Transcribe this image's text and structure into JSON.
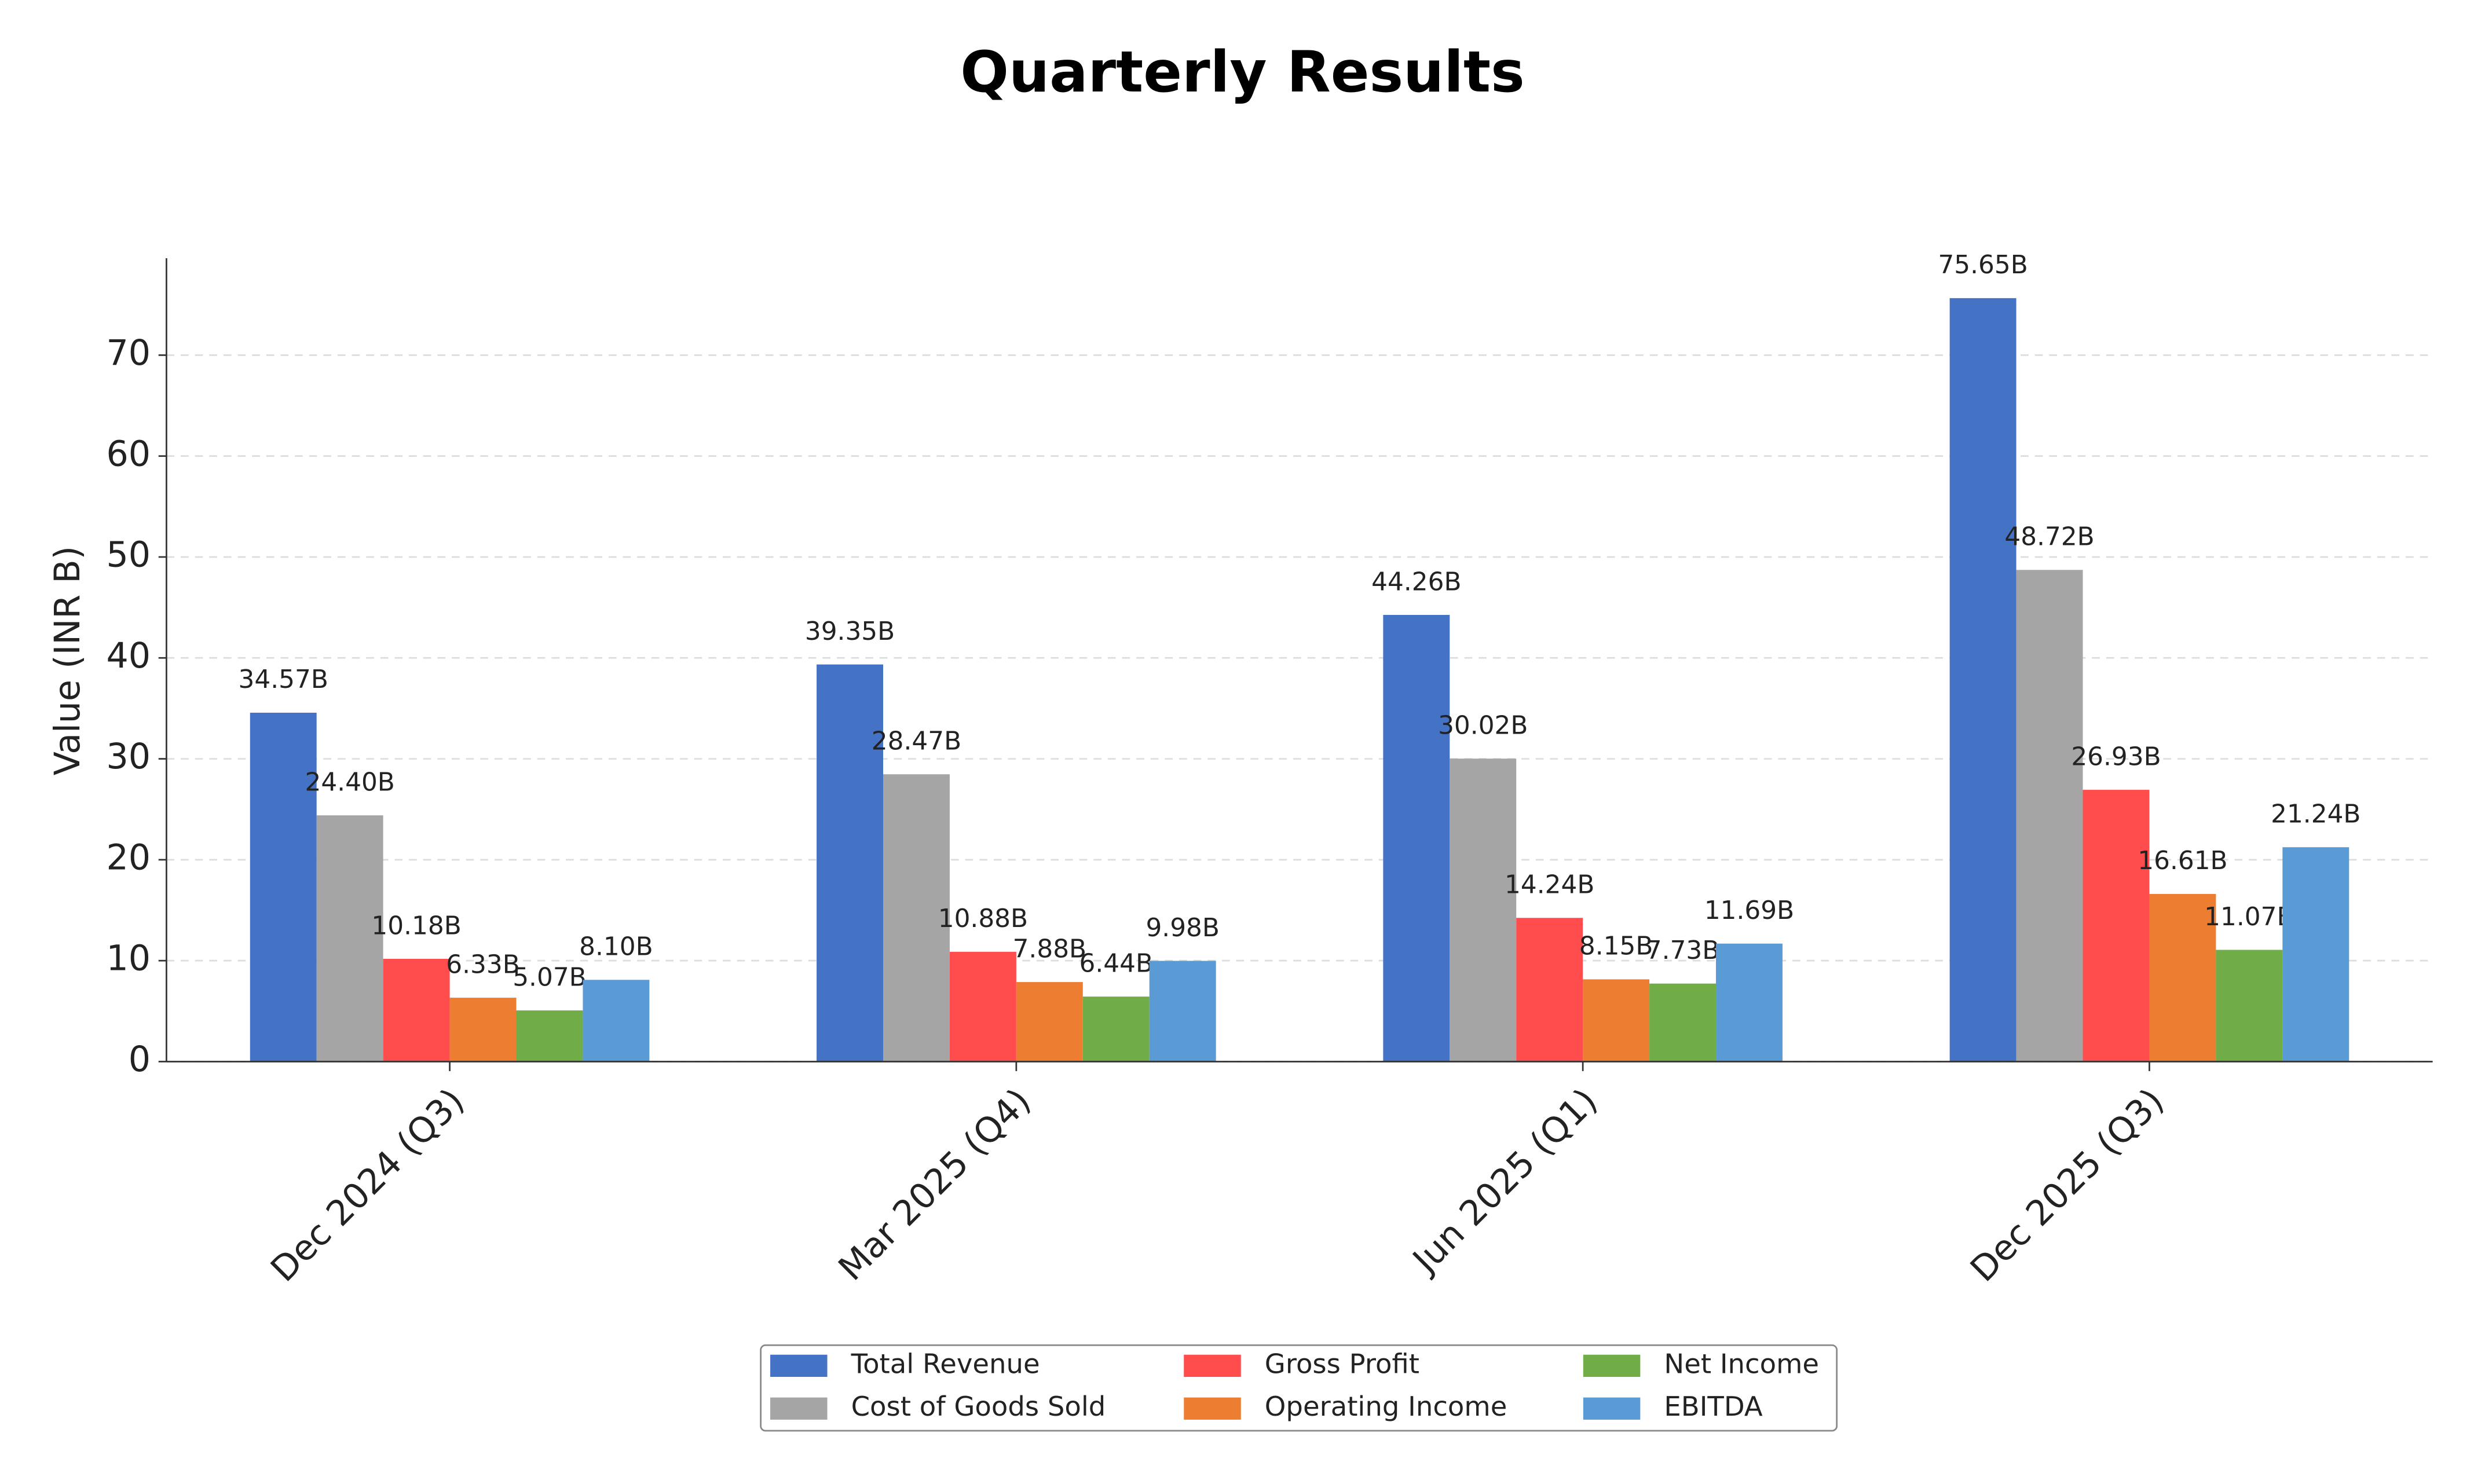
{
  "chart_data": {
    "type": "bar",
    "title": "Quarterly Results",
    "y_label": "Value (INR B)",
    "categories": [
      "Dec 2024 (Q3)",
      "Mar 2025 (Q4)",
      "Jun 2025 (Q1)",
      "Dec 2025 (Q3)"
    ],
    "series": [
      {
        "name": "Total Revenue",
        "color": "#4472c4",
        "values": [
          34.57,
          39.35,
          44.26,
          75.65
        ],
        "value_labels": [
          "34.57B",
          "39.35B",
          "44.26B",
          "75.65B"
        ]
      },
      {
        "name": "Cost of Goods Sold",
        "color": "#a5a5a5",
        "values": [
          24.4,
          28.47,
          30.02,
          48.72
        ],
        "value_labels": [
          "24.40B",
          "28.47B",
          "30.02B",
          "48.72B"
        ]
      },
      {
        "name": "Gross Profit",
        "color": "#ff4c4c",
        "values": [
          10.18,
          10.88,
          14.24,
          26.93
        ],
        "value_labels": [
          "10.18B",
          "10.88B",
          "14.24B",
          "26.93B"
        ]
      },
      {
        "name": "Operating Income",
        "color": "#ed7d31",
        "values": [
          6.33,
          7.88,
          8.15,
          16.61
        ],
        "value_labels": [
          "6.33B",
          "7.88B",
          "8.15B",
          "16.61B"
        ]
      },
      {
        "name": "Net Income",
        "color": "#70ad47",
        "values": [
          5.07,
          6.44,
          7.73,
          11.07
        ],
        "value_labels": [
          "5.07B",
          "6.44B",
          "7.73B",
          "11.07B"
        ]
      },
      {
        "name": "EBITDA",
        "color": "#5b9bd5",
        "values": [
          8.1,
          9.98,
          11.69,
          21.24
        ],
        "value_labels": [
          "8.10B",
          "9.98B",
          "11.69B",
          "21.24B"
        ]
      }
    ],
    "ylim": [
      0,
      79.6
    ],
    "yticks": [
      0,
      10,
      20,
      30,
      40,
      50,
      60,
      70
    ],
    "grid": true,
    "legend": "bottom"
  }
}
